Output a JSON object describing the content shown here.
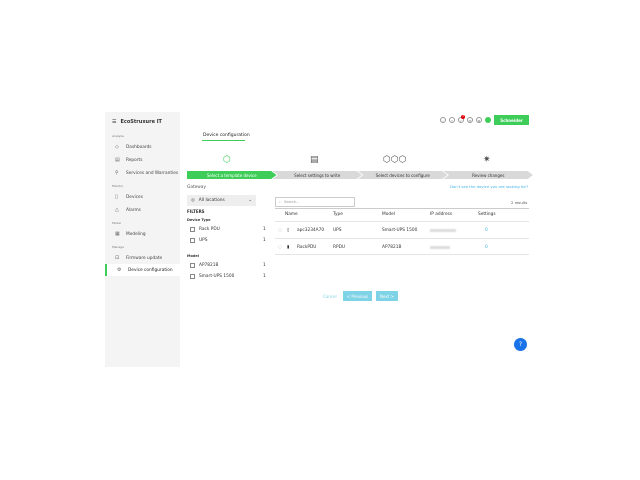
{
  "brand": {
    "app_name": "EcoStruxure IT",
    "logo_text": "Schneider Electric"
  },
  "sidebar": {
    "sections": [
      {
        "label": "Analyze",
        "items": [
          {
            "label": "Dashboards",
            "icon": "eye-icon"
          },
          {
            "label": "Reports",
            "icon": "document-icon"
          },
          {
            "label": "Services and Warranties",
            "icon": "services-icon"
          }
        ]
      },
      {
        "label": "Monitor",
        "items": [
          {
            "label": "Devices",
            "icon": "device-icon"
          },
          {
            "label": "Alarms",
            "icon": "alarm-icon"
          }
        ]
      },
      {
        "label": "Model",
        "items": [
          {
            "label": "Modeling",
            "icon": "modeling-icon"
          }
        ]
      },
      {
        "label": "Manage",
        "items": [
          {
            "label": "Firmware update",
            "icon": "firmware-icon"
          },
          {
            "label": "Device configuration",
            "icon": "gear-icon",
            "active": true
          }
        ]
      }
    ]
  },
  "header": {
    "tab": "Device configuration",
    "notification_count": "1"
  },
  "steps": [
    "Select a template device",
    "Select settings to write",
    "Select devices to configure",
    "Review changes"
  ],
  "filters": {
    "gateway_label": "Gateway",
    "gateway_value": "All locations",
    "title": "FILTERS",
    "device_type_label": "Device Type",
    "device_types": [
      {
        "label": "Rack PDU",
        "count": "1"
      },
      {
        "label": "UPS",
        "count": "1"
      }
    ],
    "model_label": "Model",
    "models": [
      {
        "label": "AP7821B",
        "count": "1"
      },
      {
        "label": "Smart-UPS 1500",
        "count": "1"
      }
    ]
  },
  "table": {
    "help_link": "Don't see the device you are looking for?",
    "search_placeholder": "Search...",
    "results": "2 results",
    "columns": [
      "Name",
      "Type",
      "Model",
      "IP address",
      "Settings"
    ],
    "rows": [
      {
        "name": "apc3234A70",
        "type": "UPS",
        "model": "Smart-UPS 1500",
        "settings": "0"
      },
      {
        "name": "RackPDU",
        "type": "RPDU",
        "model": "AP7821B",
        "settings": "0"
      }
    ]
  },
  "actions": {
    "cancel": "Cancel",
    "previous": "< Previous",
    "next": "Next >"
  },
  "colors": {
    "accent": "#3dcd58",
    "link": "#42b4e6",
    "fab": "#1a73e8"
  }
}
